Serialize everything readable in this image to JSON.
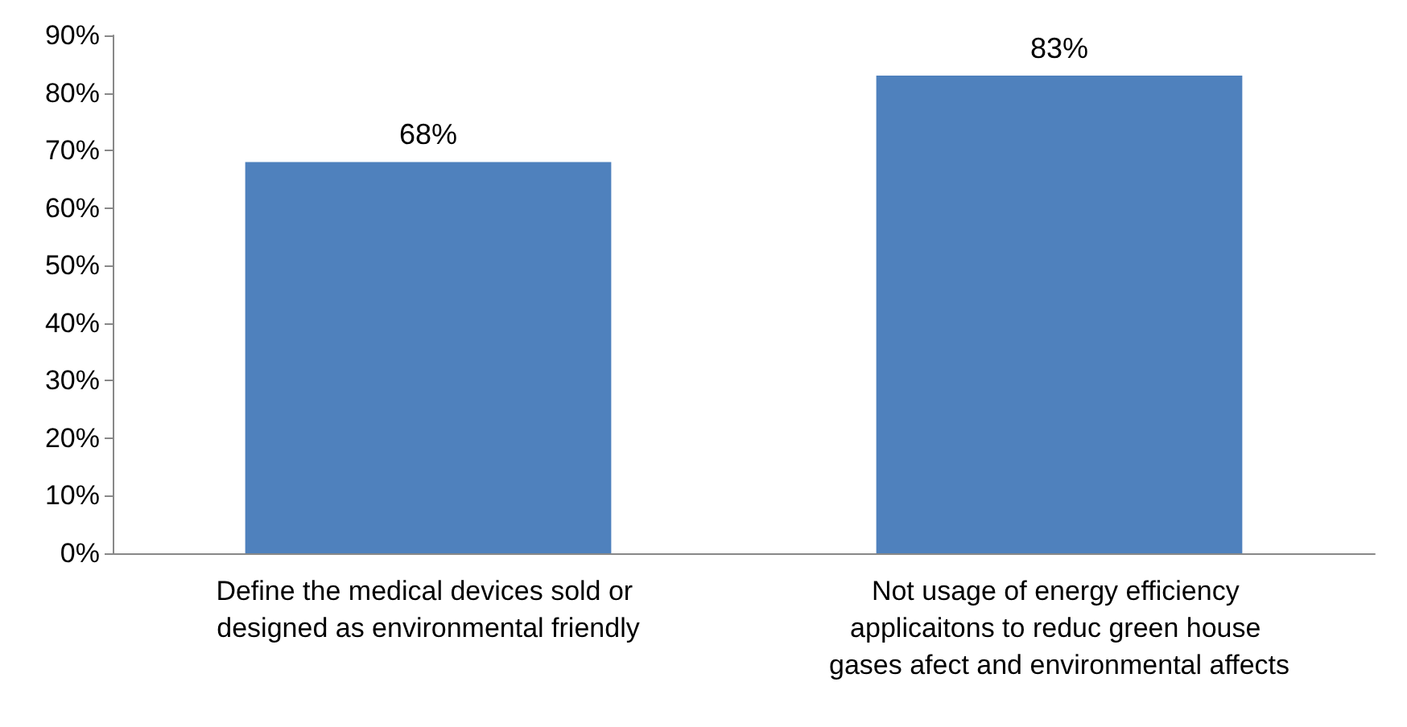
{
  "chart_data": {
    "type": "bar",
    "categories": [
      "Define the medical devices sold or designed as environmental friendly",
      "Not usage of energy efficiency applicaitons to reduc green house gases afect and environmental affects"
    ],
    "values": [
      68,
      83
    ],
    "color": "#4f81bd",
    "value_labels": [
      "68%",
      "83%"
    ],
    "ylim": [
      0,
      90
    ],
    "yticks": [
      {
        "value": 0,
        "label": "0%"
      },
      {
        "value": 10,
        "label": "10%"
      },
      {
        "value": 20,
        "label": "20%"
      },
      {
        "value": 30,
        "label": "30%"
      },
      {
        "value": 40,
        "label": "40%"
      },
      {
        "value": 50,
        "label": "50%"
      },
      {
        "value": 60,
        "label": "60%"
      },
      {
        "value": 70,
        "label": "70%"
      },
      {
        "value": 80,
        "label": "80%"
      },
      {
        "value": 90,
        "label": "90%"
      }
    ],
    "grid": false
  }
}
